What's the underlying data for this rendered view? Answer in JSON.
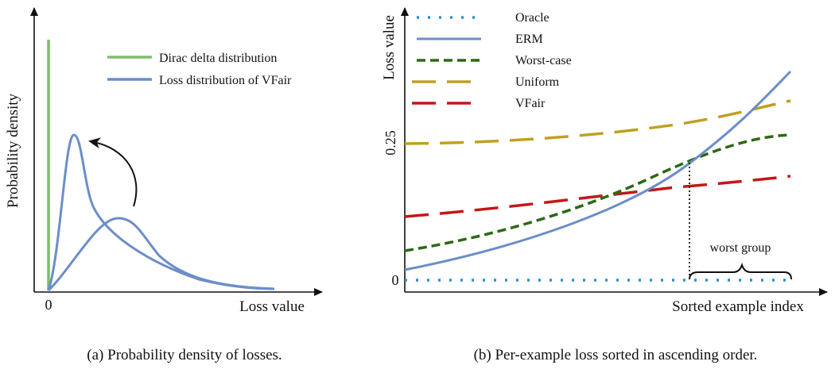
{
  "chart_data": [
    {
      "type": "line",
      "panel": "a",
      "caption": "(a) Probability density of losses.",
      "xlabel": "Loss value",
      "ylabel": "Probability density",
      "x_ticks": [
        "0"
      ],
      "legend_position": "top-right",
      "grid": false,
      "series": [
        {
          "name": "Dirac delta distribution",
          "color": "#7dbd6a",
          "kind": "vertical-spike",
          "x": 0,
          "height": 1.0
        },
        {
          "name": "Loss distribution of VFair",
          "color": "#6b8ec9",
          "kind": "narrow-peak",
          "x": [
            0,
            0.05,
            0.1,
            0.13,
            0.2,
            0.35,
            0.6,
            1.0
          ],
          "y": [
            0,
            0.4,
            0.8,
            0.62,
            0.3,
            0.15,
            0.05,
            0.0
          ]
        },
        {
          "name": "",
          "color": "#6b8ec9",
          "kind": "wide-peak",
          "x": [
            0,
            0.15,
            0.3,
            0.45,
            0.6,
            0.8,
            1.0
          ],
          "y": [
            0,
            0.13,
            0.29,
            0.21,
            0.08,
            0.02,
            0.0
          ]
        }
      ],
      "annotations": [
        "curved arrow from wide peak to narrow peak"
      ]
    },
    {
      "type": "line",
      "panel": "b",
      "caption": "(b) Per-example loss sorted in ascending order.",
      "xlabel": "Sorted example index",
      "ylabel": "Loss value",
      "y_ticks": [
        "0",
        "0.25"
      ],
      "legend_position": "top-left",
      "grid": false,
      "x": [
        0,
        0.2,
        0.4,
        0.6,
        0.7,
        0.8,
        1.0
      ],
      "series": [
        {
          "name": "Oracle",
          "color": "#2f8fc9",
          "style": "dotted",
          "values": [
            0,
            0,
            0,
            0,
            0,
            0,
            0
          ]
        },
        {
          "name": "ERM",
          "color": "#6b8ec9",
          "style": "solid",
          "values": [
            0.02,
            0.06,
            0.11,
            0.18,
            0.23,
            0.28,
            0.38
          ]
        },
        {
          "name": "Worst-case",
          "color": "#2a6a12",
          "style": "dashed",
          "values": [
            0.05,
            0.08,
            0.12,
            0.18,
            0.22,
            0.24,
            0.27
          ]
        },
        {
          "name": "Uniform",
          "color": "#c0a020",
          "style": "long-dash",
          "values": [
            0.25,
            0.255,
            0.26,
            0.27,
            0.285,
            0.3,
            0.32
          ]
        },
        {
          "name": "VFair",
          "color": "#c21818",
          "style": "long-dash",
          "values": [
            0.12,
            0.13,
            0.145,
            0.16,
            0.17,
            0.18,
            0.19
          ]
        }
      ],
      "annotations": [
        {
          "text": "worst group",
          "type": "brace",
          "x_range": [
            0.74,
            1.0
          ]
        }
      ]
    }
  ]
}
